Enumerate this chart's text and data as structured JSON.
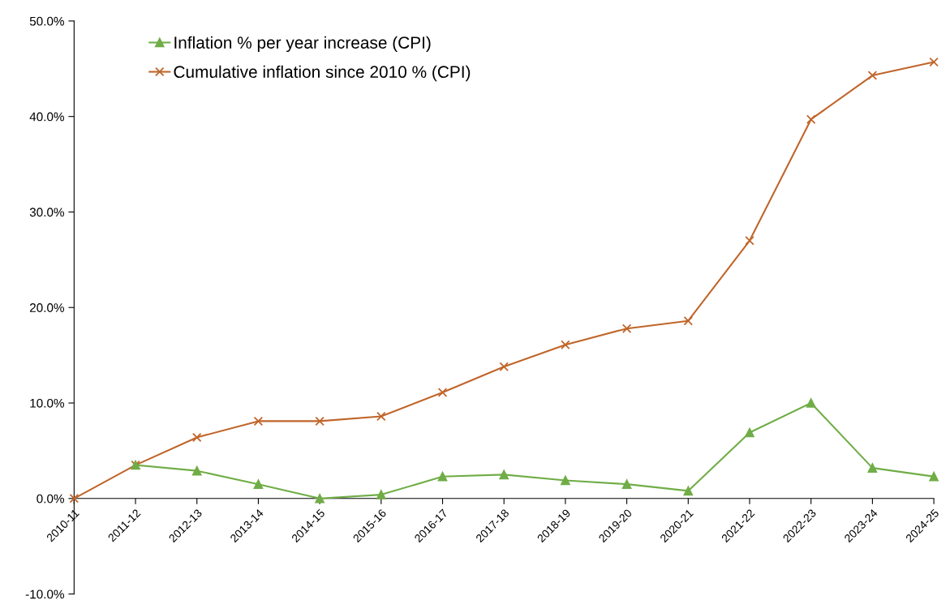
{
  "chart_data": {
    "type": "line",
    "categories": [
      "2010-11",
      "2011-12",
      "2012-13",
      "2013-14",
      "2014-15",
      "2015-16",
      "2016-17",
      "2017-18",
      "2018-19",
      "2019-20",
      "2020-21",
      "2021-22",
      "2022-23",
      "2023-24",
      "2024-25"
    ],
    "series": [
      {
        "name": "Inflation % per year increase (CPI)",
        "color": "#70ad47",
        "marker": "triangle",
        "values": [
          null,
          3.5,
          2.9,
          1.5,
          0.0,
          0.4,
          2.3,
          2.5,
          1.9,
          1.5,
          0.8,
          6.9,
          10.0,
          3.2,
          2.3
        ]
      },
      {
        "name": "Cumulative inflation since 2010 % (CPI)",
        "color": "#c0652a",
        "marker": "cross",
        "values": [
          0.0,
          3.5,
          6.4,
          8.1,
          8.1,
          8.6,
          11.1,
          13.8,
          16.1,
          17.8,
          18.6,
          27.0,
          39.7,
          44.3,
          45.7
        ]
      }
    ],
    "ylim": [
      -10,
      50
    ],
    "yticks": [
      {
        "value": -10,
        "label": "-10.0%"
      },
      {
        "value": 0,
        "label": "0.0%"
      },
      {
        "value": 10,
        "label": "10.0%"
      },
      {
        "value": 20,
        "label": "20.0%"
      },
      {
        "value": 30,
        "label": "30.0%"
      },
      {
        "value": 40,
        "label": "40.0%"
      },
      {
        "value": 50,
        "label": "50.0%"
      }
    ],
    "grid": false,
    "legend": "top left"
  }
}
